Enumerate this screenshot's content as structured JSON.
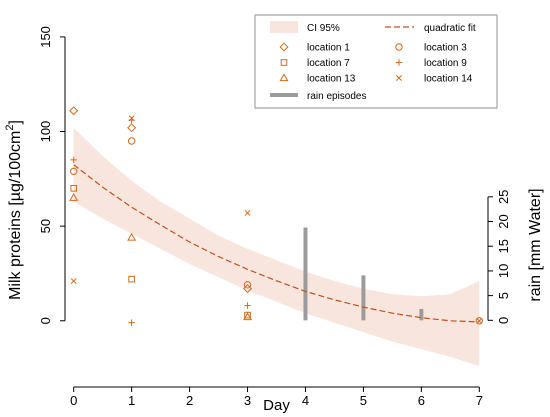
{
  "chart_data": {
    "type": "scatter",
    "xlabel": "Day",
    "ylabel_left": "Milk proteins [µg/100cm²]",
    "ylabel_left_main": "Milk proteins [µg/100cm",
    "ylabel_left_sup": "2",
    "ylabel_left_end": "]",
    "ylabel_right": "rain [mm Water]",
    "xlim": [
      -0.15,
      7.15
    ],
    "ylim_left": [
      -35,
      160
    ],
    "ylim_right": [
      -13.5,
      61.2
    ],
    "x_ticks": [
      0,
      1,
      2,
      3,
      4,
      5,
      6,
      7
    ],
    "y_left_ticks": [
      0,
      50,
      100,
      150
    ],
    "y_right_ticks": [
      0,
      5,
      10,
      15,
      20,
      25
    ],
    "colors": {
      "marker": "#d2691e",
      "fit": "#c0501e",
      "ci": "#f8e6de",
      "rain": "#9b9b9b"
    },
    "ci_band": {
      "x": [
        0,
        0.5,
        1,
        1.5,
        2,
        2.5,
        3,
        3.5,
        4,
        4.5,
        5,
        5.5,
        6,
        6.5,
        7
      ],
      "lower": [
        63,
        54,
        46,
        38,
        30,
        23,
        16,
        10,
        4,
        -1,
        -6,
        -11,
        -15,
        -19,
        -24
      ],
      "upper": [
        102,
        87,
        74,
        63,
        54,
        45,
        38,
        32,
        26,
        21,
        17,
        14,
        13,
        14,
        21
      ]
    },
    "quadratic_fit": {
      "x": [
        0,
        0.5,
        1,
        1.5,
        2,
        2.5,
        3,
        3.5,
        4,
        4.5,
        5,
        5.5,
        6,
        6.5,
        7
      ],
      "y": [
        82.5,
        70.6,
        60.0,
        50.6,
        41.6,
        33.9,
        27.2,
        21.1,
        15.5,
        11.1,
        7.2,
        4.0,
        1.6,
        0.0,
        -0.6
      ]
    },
    "series": [
      {
        "name": "location 1",
        "marker": "diamond",
        "points": [
          [
            0,
            111
          ],
          [
            1,
            102
          ],
          [
            3,
            17
          ]
        ]
      },
      {
        "name": "location 3",
        "marker": "circle",
        "points": [
          [
            0,
            79
          ],
          [
            1,
            95
          ],
          [
            3,
            19
          ],
          [
            7,
            0
          ]
        ]
      },
      {
        "name": "location 7",
        "marker": "square",
        "points": [
          [
            0,
            70
          ],
          [
            1,
            22
          ],
          [
            3,
            3
          ]
        ]
      },
      {
        "name": "location 9",
        "marker": "plus",
        "points": [
          [
            0,
            85
          ],
          [
            1,
            106
          ],
          [
            1,
            -1
          ],
          [
            3,
            8
          ]
        ]
      },
      {
        "name": "location 13",
        "marker": "triangle",
        "points": [
          [
            0,
            65
          ],
          [
            1,
            44
          ],
          [
            3,
            2
          ]
        ]
      },
      {
        "name": "location 14",
        "marker": "x",
        "points": [
          [
            0,
            21
          ],
          [
            1,
            107
          ],
          [
            3,
            57
          ],
          [
            7,
            0
          ]
        ]
      }
    ],
    "rain_episodes": [
      {
        "day": 4,
        "mm": 18.8
      },
      {
        "day": 5,
        "mm": 9.1
      },
      {
        "day": 6,
        "mm": 2.3
      }
    ],
    "legend": {
      "placement": "top-right",
      "entries": {
        "ci": "CI 95%",
        "fit": "quadratic fit",
        "rain": "rain episodes"
      }
    }
  }
}
